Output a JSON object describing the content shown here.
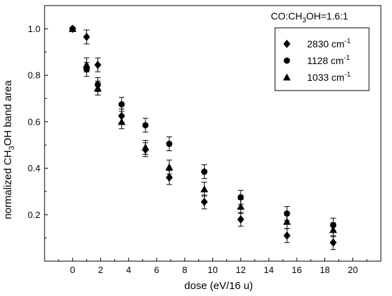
{
  "chart_data": {
    "type": "scatter",
    "xlabel": "dose (eV/16 u)",
    "ylabel_parts": [
      "normalized CH",
      "3",
      "OH band area"
    ],
    "annotation_parts": [
      "CO:CH",
      "3",
      "OH=1.6:1"
    ],
    "xlim": [
      -2,
      22
    ],
    "ylim": [
      0,
      1.1
    ],
    "x_ticks": [
      0,
      2,
      4,
      6,
      8,
      10,
      12,
      14,
      16,
      18,
      20
    ],
    "y_ticks": [
      0.2,
      0.4,
      0.6,
      0.8,
      1.0
    ],
    "y_tick_labels": [
      "0.2",
      "0.4",
      "0.6",
      "0.8",
      "1.0"
    ],
    "grid": false,
    "legend_position": "top-right",
    "series": [
      {
        "name": "2830 cm",
        "name_sup": "-1",
        "marker": "diamond",
        "points": [
          {
            "x": 0,
            "y": 1.0,
            "err": 0.0
          },
          {
            "x": 1.0,
            "y": 0.965,
            "err": 0.03
          },
          {
            "x": 1.8,
            "y": 0.845,
            "err": 0.03
          },
          {
            "x": 3.5,
            "y": 0.625,
            "err": 0.03
          },
          {
            "x": 5.2,
            "y": 0.48,
            "err": 0.03
          },
          {
            "x": 6.9,
            "y": 0.36,
            "err": 0.03
          },
          {
            "x": 9.4,
            "y": 0.255,
            "err": 0.03
          },
          {
            "x": 12.0,
            "y": 0.18,
            "err": 0.03
          },
          {
            "x": 15.3,
            "y": 0.11,
            "err": 0.03
          },
          {
            "x": 18.6,
            "y": 0.08,
            "err": 0.03
          }
        ]
      },
      {
        "name": "1128 cm",
        "name_sup": "-1",
        "marker": "circle",
        "points": [
          {
            "x": 0,
            "y": 1.0,
            "err": 0.0
          },
          {
            "x": 1.0,
            "y": 0.825,
            "err": 0.03
          },
          {
            "x": 1.8,
            "y": 0.76,
            "err": 0.03
          },
          {
            "x": 3.5,
            "y": 0.675,
            "err": 0.03
          },
          {
            "x": 5.2,
            "y": 0.585,
            "err": 0.03
          },
          {
            "x": 6.9,
            "y": 0.505,
            "err": 0.03
          },
          {
            "x": 9.4,
            "y": 0.385,
            "err": 0.03
          },
          {
            "x": 12.0,
            "y": 0.275,
            "err": 0.03
          },
          {
            "x": 15.3,
            "y": 0.205,
            "err": 0.03
          },
          {
            "x": 18.6,
            "y": 0.155,
            "err": 0.03
          }
        ]
      },
      {
        "name": "1033 cm",
        "name_sup": "-1",
        "marker": "triangle",
        "points": [
          {
            "x": 0,
            "y": 1.0,
            "err": 0.0
          },
          {
            "x": 1.0,
            "y": 0.845,
            "err": 0.03
          },
          {
            "x": 1.8,
            "y": 0.745,
            "err": 0.03
          },
          {
            "x": 3.5,
            "y": 0.6,
            "err": 0.03
          },
          {
            "x": 5.2,
            "y": 0.49,
            "err": 0.03
          },
          {
            "x": 6.9,
            "y": 0.405,
            "err": 0.03
          },
          {
            "x": 9.4,
            "y": 0.31,
            "err": 0.03
          },
          {
            "x": 12.0,
            "y": 0.235,
            "err": 0.03
          },
          {
            "x": 15.3,
            "y": 0.17,
            "err": 0.03
          },
          {
            "x": 18.6,
            "y": 0.135,
            "err": 0.03
          }
        ]
      }
    ]
  }
}
